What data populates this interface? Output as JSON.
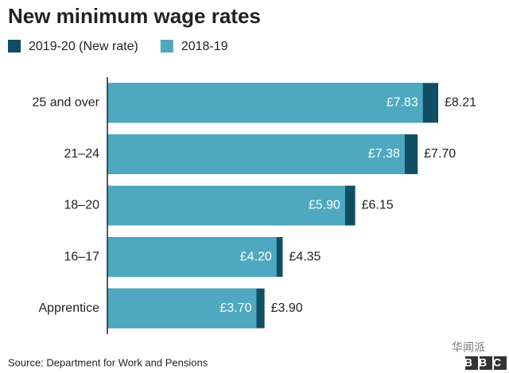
{
  "chart_data": {
    "type": "bar",
    "orientation": "horizontal",
    "title": "New minimum wage rates",
    "categories": [
      "25 and over",
      "21–24",
      "18–20",
      "16–17",
      "Apprentice"
    ],
    "series": [
      {
        "name": "2019-20 (New rate)",
        "color": "#0f4e63",
        "values": [
          8.21,
          7.7,
          6.15,
          4.35,
          3.9
        ],
        "value_labels": [
          "£8.21",
          "£7.70",
          "£6.15",
          "£4.35",
          "£3.90"
        ]
      },
      {
        "name": "2018-19",
        "color": "#4ea8bf",
        "values": [
          7.83,
          7.38,
          5.9,
          4.2,
          3.7
        ],
        "value_labels": [
          "£7.83",
          "£7.38",
          "£5.90",
          "£4.20",
          "£3.70"
        ]
      }
    ],
    "source": "Source: Department for Work and Pensions",
    "watermark": "华闻派",
    "logo": "BBC"
  }
}
